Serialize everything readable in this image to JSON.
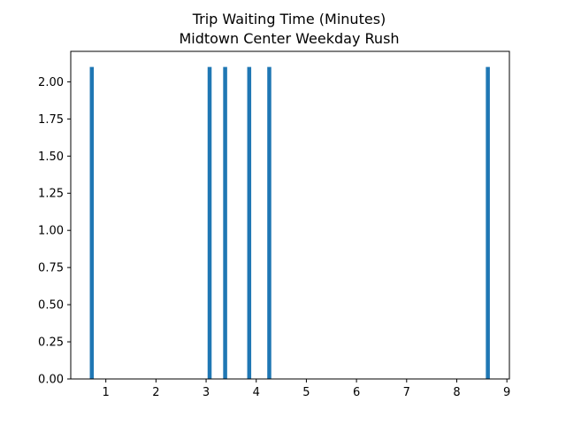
{
  "chart_data": {
    "type": "bar",
    "title": "Trip Waiting Time (Minutes)",
    "subtitle": "Midtown Center Weekday Rush",
    "xlabel": "",
    "ylabel": "",
    "x": [
      0.72,
      3.07,
      3.38,
      3.86,
      4.26,
      8.62
    ],
    "values": [
      2.1,
      2.1,
      2.1,
      2.1,
      2.1,
      2.1
    ],
    "bar_width": 0.08,
    "xlim": [
      0.3,
      9.05
    ],
    "ylim": [
      0,
      2.205
    ],
    "x_ticks": [
      {
        "value": 1,
        "label": "1"
      },
      {
        "value": 2,
        "label": "2"
      },
      {
        "value": 3,
        "label": "3"
      },
      {
        "value": 4,
        "label": "4"
      },
      {
        "value": 5,
        "label": "5"
      },
      {
        "value": 6,
        "label": "6"
      },
      {
        "value": 7,
        "label": "7"
      },
      {
        "value": 8,
        "label": "8"
      },
      {
        "value": 9,
        "label": "9"
      }
    ],
    "y_ticks": [
      {
        "value": 0,
        "label": "0.00"
      },
      {
        "value": 0.25,
        "label": "0.25"
      },
      {
        "value": 0.5,
        "label": "0.50"
      },
      {
        "value": 0.75,
        "label": "0.75"
      },
      {
        "value": 1.0,
        "label": "1.00"
      },
      {
        "value": 1.25,
        "label": "1.25"
      },
      {
        "value": 1.5,
        "label": "1.50"
      },
      {
        "value": 1.75,
        "label": "1.75"
      },
      {
        "value": 2.0,
        "label": "2.00"
      }
    ],
    "grid": false,
    "bar_color": "#1f77b4"
  }
}
